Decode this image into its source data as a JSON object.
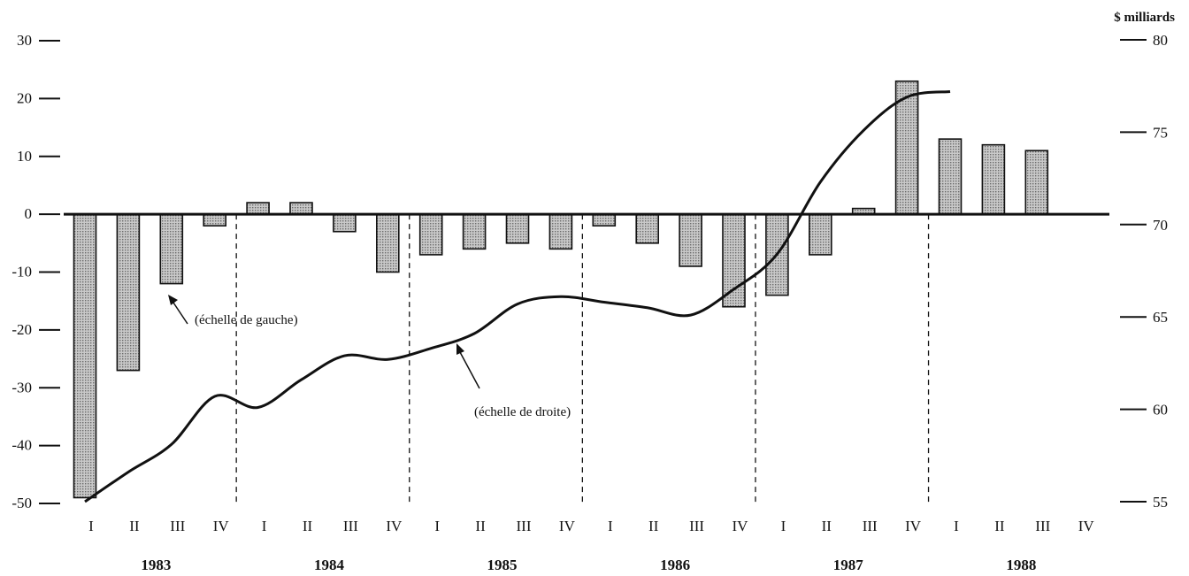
{
  "chart_data": {
    "type": "bar",
    "right_axis_unit": "$ milliards",
    "quarter_labels": [
      "I",
      "II",
      "III",
      "IV"
    ],
    "years": [
      "1983",
      "1984",
      "1985",
      "1986",
      "1987",
      "1988"
    ],
    "categories": [
      "1983 I",
      "1983 II",
      "1983 III",
      "1983 IV",
      "1984 I",
      "1984 II",
      "1984 III",
      "1984 IV",
      "1985 I",
      "1985 II",
      "1985 III",
      "1985 IV",
      "1986 I",
      "1986 II",
      "1986 III",
      "1986 IV",
      "1987 I",
      "1987 II",
      "1987 III",
      "1987 IV",
      "1988 I",
      "1988 II",
      "1988 III",
      "1988 IV"
    ],
    "left_axis": {
      "ylim": [
        -50,
        30
      ],
      "ticks": [
        "30",
        "20",
        "10",
        "0",
        "-10",
        "-20",
        "-30",
        "-40",
        "-50"
      ]
    },
    "right_axis": {
      "ylim": [
        55,
        80
      ],
      "ticks": [
        "80",
        "75",
        "70",
        "65",
        "60",
        "55"
      ]
    },
    "series": [
      {
        "type": "bar",
        "axis": "left",
        "values": [
          -49,
          -27,
          -12,
          -2,
          2,
          2,
          -3,
          -10,
          -7,
          -6,
          -5,
          -6,
          -2,
          -5,
          -9,
          -16,
          -14,
          -7,
          1,
          23,
          13,
          12,
          11,
          null
        ]
      },
      {
        "type": "line",
        "axis": "right",
        "values": [
          55,
          56.6,
          58.1,
          60.7,
          60.1,
          61.6,
          62.9,
          62.7,
          63.3,
          64.1,
          65.7,
          66.1,
          65.8,
          65.5,
          65.1,
          66.5,
          68.4,
          72.3,
          75.1,
          76.9,
          77.2,
          null,
          null,
          null
        ]
      }
    ],
    "annotations": [
      {
        "text": "(échelle de gauche)"
      },
      {
        "text": "(échelle de droite)"
      }
    ],
    "grid": false,
    "year_dividers": "dashed"
  }
}
